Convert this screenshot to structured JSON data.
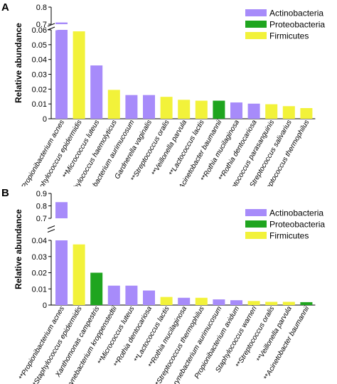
{
  "panels": [
    {
      "letter": "A"
    },
    {
      "letter": "B"
    }
  ],
  "colors": {
    "Actinobacteria": "#a78bfa",
    "Proteobacteria": "#1fa51f",
    "Firmicutes": "#f2f23a"
  },
  "chart_data": [
    {
      "type": "bar",
      "panel": "A",
      "title": "",
      "xlabel": "",
      "ylabel": "Relative abundance",
      "axis_break": true,
      "ylim_lower": [
        0,
        0.06
      ],
      "ylim_upper": [
        0.7,
        0.8
      ],
      "yticks_lower": [
        "0",
        "0.01",
        "0.02",
        "0.03",
        "0.04",
        "0.05",
        "0.06"
      ],
      "yticks_upper": [
        "0.7",
        "0.8"
      ],
      "legend": [
        "Actinobacteria",
        "Proteobacteria",
        "Firmicutes"
      ],
      "legend_position": "top-right",
      "categories": [
        "**Propionibacterium acnes",
        "**Staphylococcus epidermidis",
        "**Micrococcus luteus",
        "Staphylococcus haemolyticus",
        "**Corynebacterium aurimucosum",
        "Gardnerella vaginalis",
        "**Streptococcus oralis",
        "**Veillonella parvula",
        "**Lactococcus lactis",
        "**Acinetobacter baumannii",
        "**Rothia mucilaginosa",
        "**Rothia dentocariosa",
        "Streptococcus parasanguinis",
        "Streptococcus salivarius",
        "**Streptococcus thermophilus"
      ],
      "values": [
        0.71,
        0.059,
        0.036,
        0.0195,
        0.016,
        0.016,
        0.0148,
        0.0128,
        0.0122,
        0.0122,
        0.011,
        0.0102,
        0.0098,
        0.0085,
        0.0072
      ],
      "phylum": [
        "Actinobacteria",
        "Firmicutes",
        "Actinobacteria",
        "Firmicutes",
        "Actinobacteria",
        "Actinobacteria",
        "Firmicutes",
        "Firmicutes",
        "Firmicutes",
        "Proteobacteria",
        "Actinobacteria",
        "Actinobacteria",
        "Firmicutes",
        "Firmicutes",
        "Firmicutes"
      ]
    },
    {
      "type": "bar",
      "panel": "B",
      "title": "",
      "xlabel": "",
      "ylabel": "Relative abundance",
      "axis_break": true,
      "ylim_lower": [
        0,
        0.04
      ],
      "ylim_upper": [
        0.7,
        0.9
      ],
      "yticks_lower": [
        "0",
        "0.01",
        "0.02",
        "0.03",
        "0.04"
      ],
      "yticks_upper": [
        "0.7",
        "0.8",
        "0.9"
      ],
      "legend": [
        "Actinobacteria",
        "Proteobacteria",
        "Firmicutes"
      ],
      "legend_position": "top-right",
      "categories": [
        "**Propionibacterium acnes",
        "**Staphylococcus epidermidis",
        "Xanthomonas campestris",
        "Corynebacterium kroppenstedtii",
        "**Micrococcus luteus",
        "**Rothia dentocariosa",
        "**Lactococcus lactis",
        "**Rothia mucilaginosa",
        "**Streptococcus thermophilus",
        "**Corynebacterium aurimucosum",
        "Propionibacterium avidum",
        "Staphylococcus warneri",
        "**Streptococcus oralis",
        "**Veillonella parvula",
        "**Acinetobacter baumannii"
      ],
      "values": [
        0.83,
        0.0375,
        0.02,
        0.012,
        0.012,
        0.009,
        0.005,
        0.0045,
        0.0045,
        0.0035,
        0.003,
        0.0025,
        0.002,
        0.002,
        0.0018
      ],
      "phylum": [
        "Actinobacteria",
        "Firmicutes",
        "Proteobacteria",
        "Actinobacteria",
        "Actinobacteria",
        "Actinobacteria",
        "Firmicutes",
        "Actinobacteria",
        "Firmicutes",
        "Actinobacteria",
        "Actinobacteria",
        "Firmicutes",
        "Firmicutes",
        "Firmicutes",
        "Proteobacteria"
      ]
    }
  ]
}
